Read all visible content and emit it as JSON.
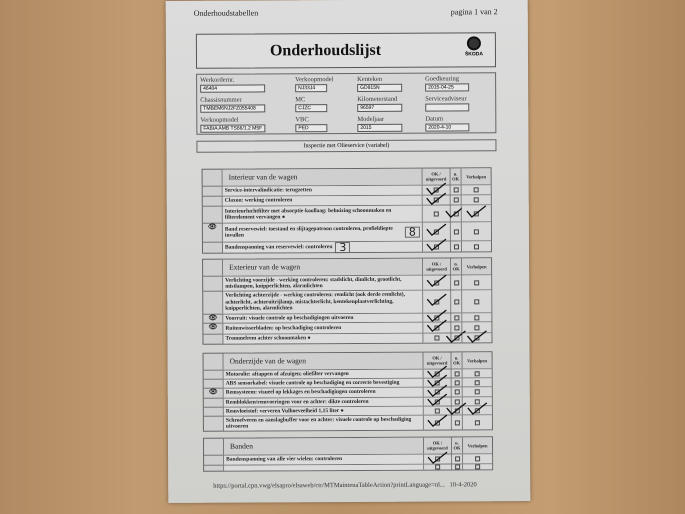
{
  "header": {
    "left": "Onderhoudstabellen",
    "right": "pagina 1 van 2"
  },
  "title": "Onderhoudslijst",
  "logo_text": "ŠKODA",
  "fields": [
    {
      "label": "Werkordernr.",
      "value": "46404"
    },
    {
      "label": "Verkoopmodel",
      "value": "NJ33J4"
    },
    {
      "label": "Kenteken",
      "value": "GD815N"
    },
    {
      "label": "Goedkeuring",
      "value": "2015-04-25"
    },
    {
      "label": "Chassisnummer",
      "value": "TMBEM6NJ2FZ055408"
    },
    {
      "label": "MC",
      "value": "CJZC"
    },
    {
      "label": "Kilometerstand",
      "value": "96597"
    },
    {
      "label": "Serviceadviseur",
      "value": ""
    },
    {
      "label": "Verkoopmodel",
      "value": "FABIA AMB TS66/1.2 M5F"
    },
    {
      "label": "VBC",
      "value": "PED"
    },
    {
      "label": "Modeljaar",
      "value": "2015"
    },
    {
      "label": "Datum",
      "value": "2020-4-10"
    }
  ],
  "inspection": "Inspectie met Olieservice (variabel)",
  "columns": {
    "ok": "OK / uitgevoerd",
    "nok": "n. OK",
    "fixed": "Verholpen"
  },
  "sections": [
    {
      "title": "Interieur van de wagen",
      "rows": [
        {
          "icon": "",
          "text": "Service-intervalindicatie: terugzetten",
          "checks": [
            1,
            0,
            0
          ]
        },
        {
          "icon": "",
          "text": "Claxon: werking controleren",
          "checks": [
            1,
            0,
            0
          ]
        },
        {
          "icon": "",
          "text": "Interieurluchtfilter met absorptie-koollaag: behuizing schoonmaken en filterelement vervangen ●",
          "checks": [
            0,
            1,
            1
          ]
        },
        {
          "icon": "👁",
          "text": "Band reservewiel: toestand en slijtagepatroon controleren, profieldiepte invullen",
          "hand": "8",
          "checks": [
            1,
            0,
            0
          ]
        },
        {
          "icon": "",
          "text": "Bandenspanning van reservewiel: controleren",
          "hand": "3",
          "checks": [
            1,
            0,
            0
          ]
        }
      ]
    },
    {
      "title": "Exterieur van de wagen",
      "rows": [
        {
          "icon": "",
          "text": "Verlichting voorzijde - werking controleren: stadslicht, dimlicht, grootlicht, mistlampen, knipperlichten, alarmlichten",
          "checks": [
            1,
            0,
            0
          ]
        },
        {
          "icon": "",
          "text": "Verlichting achterzijde - werking controleren: remlicht (ook derde remlicht), achterlicht, achteruitrijlamp, mistachterlicht, kentekenplaatverlichting, knipperlichten, alarmlichten",
          "checks": [
            1,
            0,
            0
          ]
        },
        {
          "icon": "👁",
          "text": "Voorruit: visuele controle op beschadigingen uitvoeren",
          "checks": [
            1,
            0,
            0
          ]
        },
        {
          "icon": "👁",
          "text": "Ruitenwisserbladen: op beschadiging controleren",
          "checks": [
            1,
            0,
            0
          ]
        },
        {
          "icon": "",
          "text": "Trommelrem achter schoonmaken ●",
          "checks": [
            0,
            1,
            1
          ]
        }
      ]
    },
    {
      "title": "Onderzijde van de wagen",
      "rows": [
        {
          "icon": "",
          "text": "Motorolie: aftappen of afzuigen; oliefilter vervangen",
          "checks": [
            1,
            0,
            0
          ]
        },
        {
          "icon": "",
          "text": "ABS sensorkabel: visuele controle op beschadiging en correcte bevestiging",
          "checks": [
            1,
            0,
            0
          ]
        },
        {
          "icon": "👁",
          "text": "Remsysteem: visueel op lekkages en beschadigingen controleren",
          "checks": [
            1,
            0,
            0
          ]
        },
        {
          "icon": "",
          "text": "Remblokken/remvoeringen voor en achter: dikte controleren",
          "checks": [
            1,
            0,
            0
          ]
        },
        {
          "icon": "",
          "text": "Remvloeistof: ververen Vulhoeveelheid 1,15 liter ●",
          "checks": [
            0,
            1,
            1
          ]
        },
        {
          "icon": "",
          "text": "Schroefveren en aanslagbuffer voor en achter: visuele controle op beschadiging uitvoeren",
          "checks": [
            1,
            0,
            0
          ]
        }
      ]
    },
    {
      "title": "Banden",
      "rows": [
        {
          "icon": "",
          "text": "Bandenspanning van alle vier wielen: controleren",
          "checks": [
            1,
            0,
            0
          ]
        },
        {
          "icon": "",
          "text": "",
          "checks": [
            0,
            0,
            0
          ]
        }
      ]
    }
  ],
  "footer": {
    "url": "https://portal.cpn.vwg/elsapro/elsaweb/ctr/MTMaintenaTableAction?printLanguage=nl...",
    "date": "10-4-2020"
  }
}
